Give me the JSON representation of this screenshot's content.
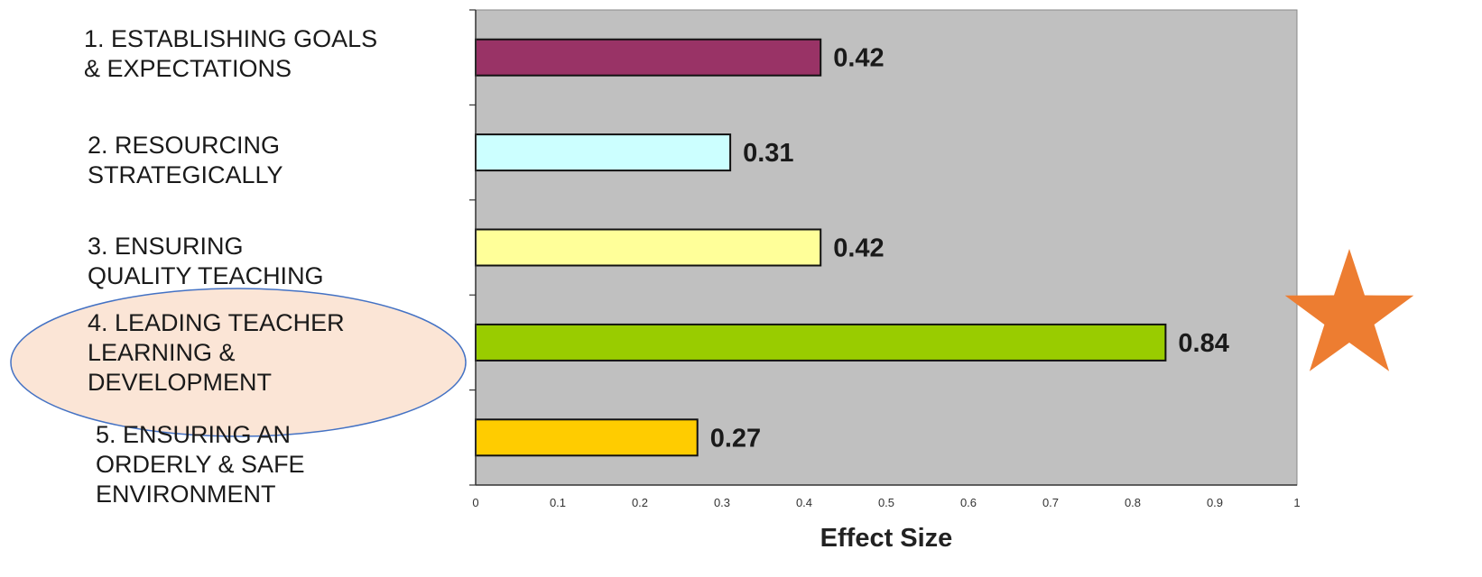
{
  "chart_data": {
    "type": "bar",
    "orientation": "horizontal",
    "categories": [
      [
        "1. ESTABLISHING GOALS",
        "& EXPECTATIONS"
      ],
      [
        "2. RESOURCING",
        "STRATEGICALLY"
      ],
      [
        "3. ENSURING",
        "QUALITY TEACHING"
      ],
      [
        "4. LEADING TEACHER",
        "LEARNING &",
        "DEVELOPMENT"
      ],
      [
        "5. ENSURING AN",
        "ORDERLY & SAFE",
        "ENVIRONMENT"
      ]
    ],
    "values": [
      0.42,
      0.31,
      0.42,
      0.84,
      0.27
    ],
    "value_labels": [
      "0.42",
      "0.31",
      "0.42",
      "0.84",
      "0.27"
    ],
    "bar_colors": [
      "#993366",
      "#ccffff",
      "#ffff99",
      "#99cc00",
      "#ffcc00"
    ],
    "xlabel": "Effect Size",
    "ylabel": "",
    "xlim": [
      0,
      1
    ],
    "xticks": [
      "0",
      "0.1",
      "0.2",
      "0.3",
      "0.4",
      "0.5",
      "0.6",
      "0.7",
      "0.8",
      "0.9",
      "1"
    ],
    "plot_background": "#c0c0c0",
    "grid": false,
    "legend": "none",
    "highlighted_category_index": 3,
    "highlight_color": "#fbe5d6",
    "highlight_border": "#4472c4",
    "star_color": "#ed7d31"
  }
}
